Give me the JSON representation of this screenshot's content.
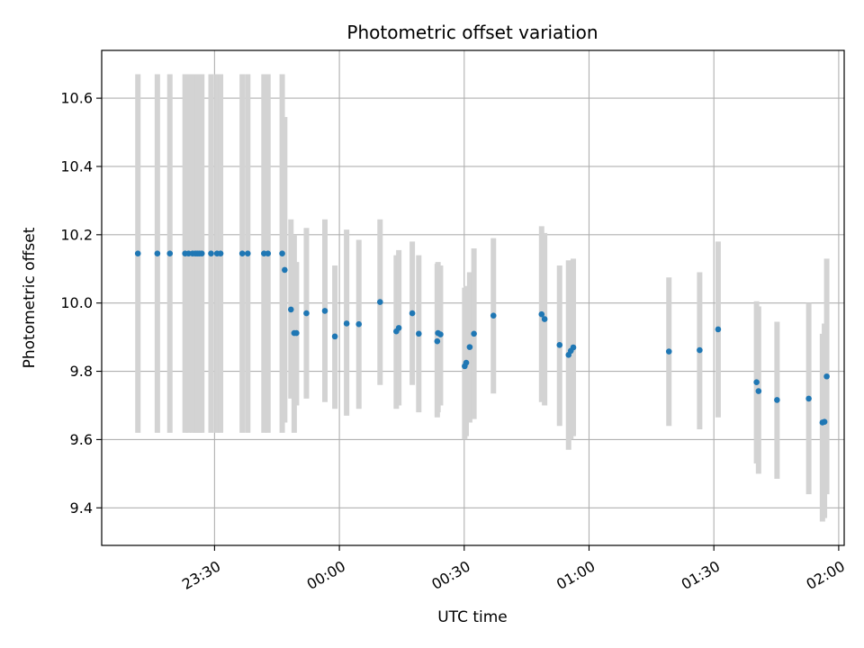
{
  "chart_data": {
    "type": "scatter",
    "title": "Photometric offset variation",
    "xlabel": "UTC time",
    "ylabel": "Photometric offset",
    "x_unit": "UTC time (hours after 00:00; negative = previous day)",
    "xlim": [
      -0.952,
      2.022
    ],
    "ylim": [
      9.29,
      10.74
    ],
    "x_ticks": [
      {
        "value": -0.5,
        "label": "23:30"
      },
      {
        "value": 0.0,
        "label": "00:00"
      },
      {
        "value": 0.5,
        "label": "00:30"
      },
      {
        "value": 1.0,
        "label": "01:00"
      },
      {
        "value": 1.5,
        "label": "01:30"
      },
      {
        "value": 2.0,
        "label": "02:00"
      }
    ],
    "y_ticks": [
      {
        "value": 9.4,
        "label": "9.4"
      },
      {
        "value": 9.6,
        "label": "9.6"
      },
      {
        "value": 9.8,
        "label": "9.8"
      },
      {
        "value": 10.0,
        "label": "10.0"
      },
      {
        "value": 10.2,
        "label": "10.2"
      },
      {
        "value": 10.4,
        "label": "10.4"
      },
      {
        "value": 10.6,
        "label": "10.6"
      }
    ],
    "grid": true,
    "colors": {
      "points": "#1f77b4",
      "errorbars": "#d3d3d3",
      "grid": "#b0b0b0"
    },
    "points": [
      {
        "x": -0.807,
        "y": 10.145,
        "ylow": 9.62,
        "yhigh": 10.67
      },
      {
        "x": -0.729,
        "y": 10.145,
        "ylow": 9.62,
        "yhigh": 10.67
      },
      {
        "x": -0.679,
        "y": 10.145,
        "ylow": 9.62,
        "yhigh": 10.67
      },
      {
        "x": -0.618,
        "y": 10.145,
        "ylow": 9.62,
        "yhigh": 10.67
      },
      {
        "x": -0.604,
        "y": 10.145,
        "ylow": 9.62,
        "yhigh": 10.67
      },
      {
        "x": -0.588,
        "y": 10.145,
        "ylow": 9.62,
        "yhigh": 10.67
      },
      {
        "x": -0.577,
        "y": 10.145,
        "ylow": 9.62,
        "yhigh": 10.67
      },
      {
        "x": -0.569,
        "y": 10.145,
        "ylow": 9.62,
        "yhigh": 10.67
      },
      {
        "x": -0.561,
        "y": 10.145,
        "ylow": 9.62,
        "yhigh": 10.67
      },
      {
        "x": -0.551,
        "y": 10.145,
        "ylow": 9.62,
        "yhigh": 10.67
      },
      {
        "x": -0.514,
        "y": 10.145,
        "ylow": 9.62,
        "yhigh": 10.67
      },
      {
        "x": -0.49,
        "y": 10.145,
        "ylow": 9.62,
        "yhigh": 10.67
      },
      {
        "x": -0.476,
        "y": 10.145,
        "ylow": 9.62,
        "yhigh": 10.67
      },
      {
        "x": -0.389,
        "y": 10.145,
        "ylow": 9.62,
        "yhigh": 10.67
      },
      {
        "x": -0.367,
        "y": 10.145,
        "ylow": 9.62,
        "yhigh": 10.67
      },
      {
        "x": -0.302,
        "y": 10.145,
        "ylow": 9.62,
        "yhigh": 10.67
      },
      {
        "x": -0.286,
        "y": 10.145,
        "ylow": 9.62,
        "yhigh": 10.67
      },
      {
        "x": -0.229,
        "y": 10.145,
        "ylow": 9.62,
        "yhigh": 10.67
      },
      {
        "x": -0.219,
        "y": 10.097,
        "ylow": 9.65,
        "yhigh": 10.545
      },
      {
        "x": -0.194,
        "y": 9.981,
        "ylow": 9.72,
        "yhigh": 10.245
      },
      {
        "x": -0.181,
        "y": 9.912,
        "ylow": 9.62,
        "yhigh": 10.2
      },
      {
        "x": -0.172,
        "y": 9.912,
        "ylow": 9.7,
        "yhigh": 10.12
      },
      {
        "x": -0.132,
        "y": 9.97,
        "ylow": 9.72,
        "yhigh": 10.22
      },
      {
        "x": -0.058,
        "y": 9.977,
        "ylow": 9.71,
        "yhigh": 10.245
      },
      {
        "x": -0.018,
        "y": 9.902,
        "ylow": 9.69,
        "yhigh": 10.11
      },
      {
        "x": 0.029,
        "y": 9.94,
        "ylow": 9.67,
        "yhigh": 10.215
      },
      {
        "x": 0.078,
        "y": 9.938,
        "ylow": 9.69,
        "yhigh": 10.185
      },
      {
        "x": 0.163,
        "y": 10.003,
        "ylow": 9.76,
        "yhigh": 10.245
      },
      {
        "x": 0.228,
        "y": 9.917,
        "ylow": 9.69,
        "yhigh": 10.14
      },
      {
        "x": 0.238,
        "y": 9.927,
        "ylow": 9.7,
        "yhigh": 10.155
      },
      {
        "x": 0.292,
        "y": 9.97,
        "ylow": 9.76,
        "yhigh": 10.18
      },
      {
        "x": 0.318,
        "y": 9.91,
        "ylow": 9.68,
        "yhigh": 10.14
      },
      {
        "x": 0.392,
        "y": 9.888,
        "ylow": 9.665,
        "yhigh": 10.115
      },
      {
        "x": 0.395,
        "y": 9.912,
        "ylow": 9.68,
        "yhigh": 10.12
      },
      {
        "x": 0.405,
        "y": 9.908,
        "ylow": 9.7,
        "yhigh": 10.11
      },
      {
        "x": 0.502,
        "y": 9.815,
        "ylow": 9.6,
        "yhigh": 10.045
      },
      {
        "x": 0.508,
        "y": 9.825,
        "ylow": 9.61,
        "yhigh": 10.05
      },
      {
        "x": 0.522,
        "y": 9.871,
        "ylow": 9.65,
        "yhigh": 10.09
      },
      {
        "x": 0.539,
        "y": 9.91,
        "ylow": 9.66,
        "yhigh": 10.16
      },
      {
        "x": 0.617,
        "y": 9.963,
        "ylow": 9.735,
        "yhigh": 10.19
      },
      {
        "x": 0.81,
        "y": 9.967,
        "ylow": 9.71,
        "yhigh": 10.225
      },
      {
        "x": 0.822,
        "y": 9.953,
        "ylow": 9.7,
        "yhigh": 10.205
      },
      {
        "x": 0.882,
        "y": 9.877,
        "ylow": 9.64,
        "yhigh": 10.11
      },
      {
        "x": 0.918,
        "y": 9.848,
        "ylow": 9.57,
        "yhigh": 10.125
      },
      {
        "x": 0.927,
        "y": 9.86,
        "ylow": 9.6,
        "yhigh": 10.12
      },
      {
        "x": 0.937,
        "y": 9.87,
        "ylow": 9.61,
        "yhigh": 10.13
      },
      {
        "x": 1.32,
        "y": 9.858,
        "ylow": 9.64,
        "yhigh": 10.075
      },
      {
        "x": 1.443,
        "y": 9.862,
        "ylow": 9.63,
        "yhigh": 10.09
      },
      {
        "x": 1.517,
        "y": 9.923,
        "ylow": 9.665,
        "yhigh": 10.18
      },
      {
        "x": 1.671,
        "y": 9.768,
        "ylow": 9.53,
        "yhigh": 10.005
      },
      {
        "x": 1.679,
        "y": 9.742,
        "ylow": 9.5,
        "yhigh": 9.99
      },
      {
        "x": 1.753,
        "y": 9.716,
        "ylow": 9.485,
        "yhigh": 9.945
      },
      {
        "x": 1.88,
        "y": 9.72,
        "ylow": 9.44,
        "yhigh": 10.0
      },
      {
        "x": 1.935,
        "y": 9.65,
        "ylow": 9.36,
        "yhigh": 9.91
      },
      {
        "x": 1.943,
        "y": 9.652,
        "ylow": 9.37,
        "yhigh": 9.94
      },
      {
        "x": 1.952,
        "y": 9.785,
        "ylow": 9.44,
        "yhigh": 10.13
      }
    ]
  }
}
